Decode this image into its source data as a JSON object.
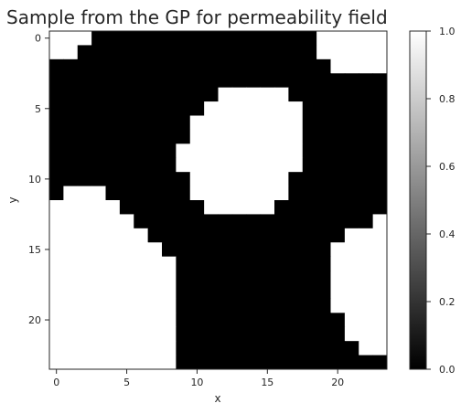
{
  "chart_data": {
    "type": "heatmap",
    "title": "Sample from the GP for permeability field",
    "xlabel": "x",
    "ylabel": "y",
    "x_ticks": [
      "0",
      "5",
      "10",
      "15",
      "20"
    ],
    "y_ticks": [
      "0",
      "5",
      "10",
      "15",
      "20"
    ],
    "xlim": [
      -0.5,
      23.5
    ],
    "ylim": [
      23.5,
      -0.5
    ],
    "colormap": "gray",
    "colorbar": {
      "range": [
        0.0,
        1.0
      ],
      "ticks": [
        "0.0",
        "0.2",
        "0.4",
        "0.6",
        "0.8",
        "1.0"
      ]
    },
    "grid_size": [
      24,
      24
    ],
    "values": [
      [
        1,
        1,
        1,
        0,
        0,
        0,
        0,
        0,
        0,
        0,
        0,
        0,
        0,
        0,
        0,
        0,
        0,
        0,
        0,
        1,
        1,
        1,
        1,
        1
      ],
      [
        1,
        1,
        0,
        0,
        0,
        0,
        0,
        0,
        0,
        0,
        0,
        0,
        0,
        0,
        0,
        0,
        0,
        0,
        0,
        1,
        1,
        1,
        1,
        1
      ],
      [
        0,
        0,
        0,
        0,
        0,
        0,
        0,
        0,
        0,
        0,
        0,
        0,
        0,
        0,
        0,
        0,
        0,
        0,
        0,
        0,
        1,
        1,
        1,
        1
      ],
      [
        0,
        0,
        0,
        0,
        0,
        0,
        0,
        0,
        0,
        0,
        0,
        0,
        0,
        0,
        0,
        0,
        0,
        0,
        0,
        0,
        0,
        0,
        0,
        0
      ],
      [
        0,
        0,
        0,
        0,
        0,
        0,
        0,
        0,
        0,
        0,
        0,
        0,
        1,
        1,
        1,
        1,
        1,
        0,
        0,
        0,
        0,
        0,
        0,
        0
      ],
      [
        0,
        0,
        0,
        0,
        0,
        0,
        0,
        0,
        0,
        0,
        0,
        1,
        1,
        1,
        1,
        1,
        1,
        1,
        0,
        0,
        0,
        0,
        0,
        0
      ],
      [
        0,
        0,
        0,
        0,
        0,
        0,
        0,
        0,
        0,
        0,
        1,
        1,
        1,
        1,
        1,
        1,
        1,
        1,
        0,
        0,
        0,
        0,
        0,
        0
      ],
      [
        0,
        0,
        0,
        0,
        0,
        0,
        0,
        0,
        0,
        0,
        1,
        1,
        1,
        1,
        1,
        1,
        1,
        1,
        0,
        0,
        0,
        0,
        0,
        0
      ],
      [
        0,
        0,
        0,
        0,
        0,
        0,
        0,
        0,
        0,
        1,
        1,
        1,
        1,
        1,
        1,
        1,
        1,
        1,
        0,
        0,
        0,
        0,
        0,
        0
      ],
      [
        0,
        0,
        0,
        0,
        0,
        0,
        0,
        0,
        0,
        1,
        1,
        1,
        1,
        1,
        1,
        1,
        1,
        1,
        0,
        0,
        0,
        0,
        0,
        0
      ],
      [
        0,
        0,
        0,
        0,
        0,
        0,
        0,
        0,
        0,
        0,
        1,
        1,
        1,
        1,
        1,
        1,
        1,
        0,
        0,
        0,
        0,
        0,
        0,
        0
      ],
      [
        0,
        1,
        1,
        1,
        0,
        0,
        0,
        0,
        0,
        0,
        1,
        1,
        1,
        1,
        1,
        1,
        1,
        0,
        0,
        0,
        0,
        0,
        0,
        0
      ],
      [
        1,
        1,
        1,
        1,
        1,
        0,
        0,
        0,
        0,
        0,
        0,
        1,
        1,
        1,
        1,
        1,
        0,
        0,
        0,
        0,
        0,
        0,
        0,
        0
      ],
      [
        1,
        1,
        1,
        1,
        1,
        1,
        0,
        0,
        0,
        0,
        0,
        0,
        0,
        0,
        0,
        0,
        0,
        0,
        0,
        0,
        0,
        0,
        0,
        1
      ],
      [
        1,
        1,
        1,
        1,
        1,
        1,
        1,
        0,
        0,
        0,
        0,
        0,
        0,
        0,
        0,
        0,
        0,
        0,
        0,
        0,
        0,
        1,
        1,
        1
      ],
      [
        1,
        1,
        1,
        1,
        1,
        1,
        1,
        1,
        0,
        0,
        0,
        0,
        0,
        0,
        0,
        0,
        0,
        0,
        0,
        0,
        1,
        1,
        1,
        1
      ],
      [
        1,
        1,
        1,
        1,
        1,
        1,
        1,
        1,
        1,
        0,
        0,
        0,
        0,
        0,
        0,
        0,
        0,
        0,
        0,
        0,
        1,
        1,
        1,
        1
      ],
      [
        1,
        1,
        1,
        1,
        1,
        1,
        1,
        1,
        1,
        0,
        0,
        0,
        0,
        0,
        0,
        0,
        0,
        0,
        0,
        0,
        1,
        1,
        1,
        1
      ],
      [
        1,
        1,
        1,
        1,
        1,
        1,
        1,
        1,
        1,
        0,
        0,
        0,
        0,
        0,
        0,
        0,
        0,
        0,
        0,
        0,
        1,
        1,
        1,
        1
      ],
      [
        1,
        1,
        1,
        1,
        1,
        1,
        1,
        1,
        1,
        0,
        0,
        0,
        0,
        0,
        0,
        0,
        0,
        0,
        0,
        0,
        1,
        1,
        1,
        1
      ],
      [
        1,
        1,
        1,
        1,
        1,
        1,
        1,
        1,
        1,
        0,
        0,
        0,
        0,
        0,
        0,
        0,
        0,
        0,
        0,
        0,
        0,
        1,
        1,
        1
      ],
      [
        1,
        1,
        1,
        1,
        1,
        1,
        1,
        1,
        1,
        0,
        0,
        0,
        0,
        0,
        0,
        0,
        0,
        0,
        0,
        0,
        0,
        1,
        1,
        1
      ],
      [
        1,
        1,
        1,
        1,
        1,
        1,
        1,
        1,
        1,
        0,
        0,
        0,
        0,
        0,
        0,
        0,
        0,
        0,
        0,
        0,
        0,
        0,
        1,
        1
      ],
      [
        1,
        1,
        1,
        1,
        1,
        1,
        1,
        1,
        1,
        0,
        0,
        0,
        0,
        0,
        0,
        0,
        0,
        0,
        0,
        0,
        0,
        0,
        0,
        0
      ]
    ]
  }
}
